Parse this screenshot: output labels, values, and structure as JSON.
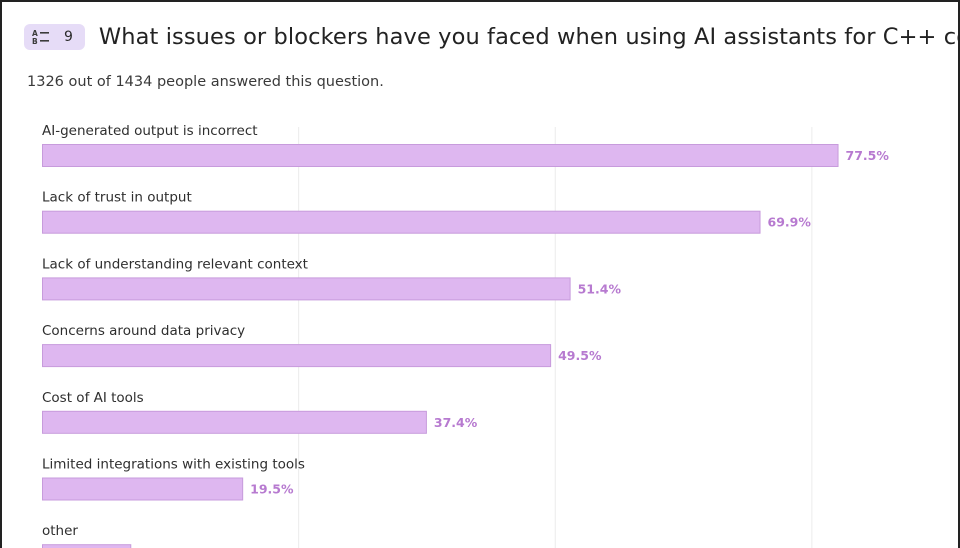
{
  "question": {
    "number": "9",
    "icon": "sort-alpha-icon",
    "title": "What issues or blockers have you faced when using AI assistants for C++ coding?",
    "answered": "1326 out of 1434 people answered this question."
  },
  "colors": {
    "bar_fill": "#deb7f0",
    "bar_stroke": "#c79bdc",
    "value_label": "#b77ad0",
    "badge_bg": "#e6dcf7"
  },
  "chart_data": {
    "type": "bar",
    "orientation": "horizontal",
    "value_suffix": "%",
    "xlim": [
      0,
      100
    ],
    "grid": true,
    "categories": [
      "AI-generated output is incorrect",
      "Lack of trust in output",
      "Lack of understanding relevant context",
      "Concerns around data privacy",
      "Cost of AI tools",
      "Limited integrations with existing tools",
      "other"
    ],
    "values": [
      77.5,
      69.9,
      51.4,
      49.5,
      37.4,
      19.5,
      8.6
    ],
    "value_labels": [
      "77.5%",
      "69.9%",
      "51.4%",
      "49.5%",
      "37.4%",
      "19.5%",
      ""
    ]
  }
}
